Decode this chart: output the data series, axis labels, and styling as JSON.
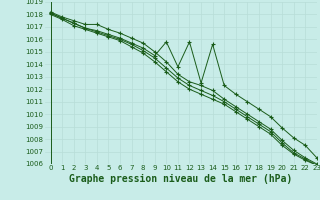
{
  "title": "Graphe pression niveau de la mer (hPa)",
  "background_color": "#c8ece8",
  "grid_color": "#b8ddd8",
  "line_color": "#1a5c1a",
  "x": [
    0,
    1,
    2,
    3,
    4,
    5,
    6,
    7,
    8,
    9,
    10,
    11,
    12,
    13,
    14,
    15,
    16,
    17,
    18,
    19,
    20,
    21,
    22,
    23
  ],
  "series": [
    [
      1018.2,
      1017.8,
      1017.5,
      1017.2,
      1017.2,
      1016.8,
      1016.5,
      1016.1,
      1015.7,
      1015.0,
      1014.2,
      1013.2,
      1012.6,
      1012.3,
      1011.9,
      1011.2,
      1010.6,
      1010.0,
      1009.4,
      1008.8,
      1007.9,
      1007.1,
      1006.5,
      1006.0
    ],
    [
      1018.0,
      1017.6,
      1017.1,
      1016.8,
      1016.5,
      1016.2,
      1015.9,
      1015.4,
      1014.9,
      1014.2,
      1013.4,
      1012.6,
      1012.0,
      1011.6,
      1011.2,
      1010.8,
      1010.2,
      1009.6,
      1009.0,
      1008.4,
      1007.5,
      1006.8,
      1006.3,
      1005.9
    ],
    [
      1018.1,
      1017.7,
      1017.3,
      1016.9,
      1016.7,
      1016.4,
      1016.1,
      1015.7,
      1015.3,
      1014.7,
      1015.8,
      1013.8,
      1015.8,
      1012.5,
      1015.6,
      1012.3,
      1011.6,
      1011.0,
      1010.4,
      1009.8,
      1008.9,
      1008.1,
      1007.5,
      1006.5
    ],
    [
      1018.1,
      1017.7,
      1017.3,
      1016.9,
      1016.6,
      1016.3,
      1016.0,
      1015.6,
      1015.1,
      1014.5,
      1013.7,
      1012.9,
      1012.3,
      1011.9,
      1011.5,
      1011.0,
      1010.4,
      1009.8,
      1009.2,
      1008.6,
      1007.7,
      1006.9,
      1006.4,
      1005.9
    ]
  ],
  "ylim": [
    1006,
    1019
  ],
  "yticks": [
    1006,
    1007,
    1008,
    1009,
    1010,
    1011,
    1012,
    1013,
    1014,
    1015,
    1016,
    1017,
    1018,
    1019
  ],
  "xlim": [
    -0.5,
    23
  ],
  "xticks": [
    0,
    1,
    2,
    3,
    4,
    5,
    6,
    7,
    8,
    9,
    10,
    11,
    12,
    13,
    14,
    15,
    16,
    17,
    18,
    19,
    20,
    21,
    22,
    23
  ],
  "marker": "+",
  "markersize": 3,
  "linewidth": 0.7,
  "title_fontsize": 7,
  "tick_fontsize": 5
}
